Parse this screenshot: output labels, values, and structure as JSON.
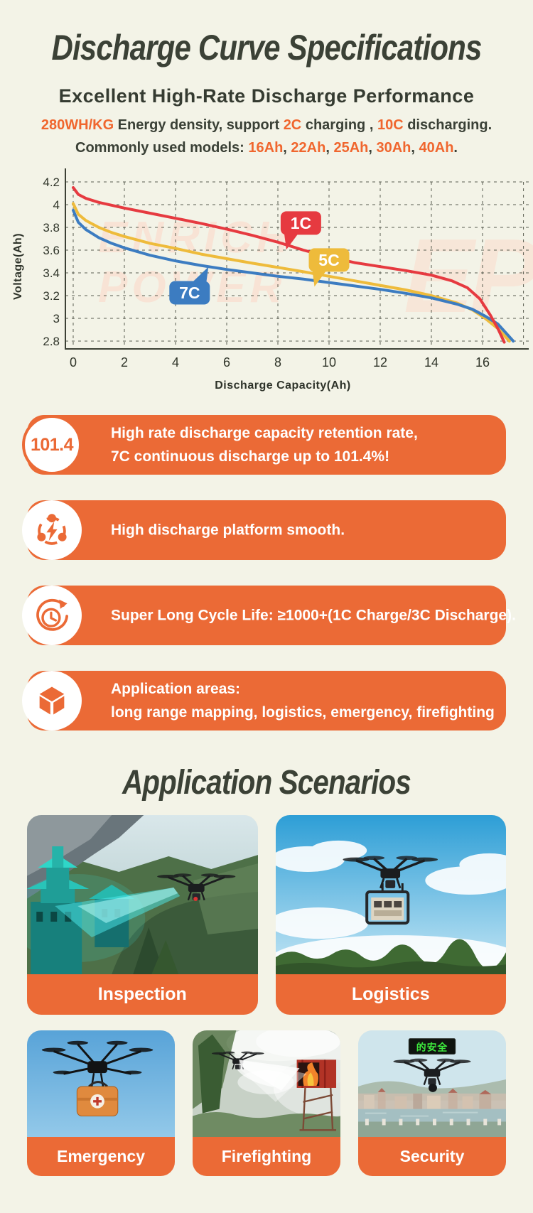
{
  "page": {
    "background": "#f3f3e7",
    "accent_orange": "#eb6a36",
    "highlight_orange": "#f0662e",
    "title_color": "#3b4136"
  },
  "header": {
    "title": "Discharge Curve Specifications",
    "subtitle": "Excellent High-Rate Discharge Performance",
    "line1": [
      [
        "280WH/KG",
        1
      ],
      [
        " Energy density, support ",
        0
      ],
      [
        "2C",
        1
      ],
      [
        " charging , ",
        0
      ],
      [
        "10C",
        1
      ],
      [
        " discharging.",
        0
      ]
    ],
    "line2": [
      [
        "Commonly used models: ",
        0
      ],
      [
        "16Ah",
        1
      ],
      [
        ", ",
        0
      ],
      [
        "22Ah",
        1
      ],
      [
        ", ",
        0
      ],
      [
        "25Ah",
        1
      ],
      [
        ", ",
        0
      ],
      [
        "30Ah",
        1
      ],
      [
        ", ",
        0
      ],
      [
        "40Ah",
        1
      ],
      [
        ".",
        0
      ]
    ]
  },
  "chart_data": {
    "type": "line",
    "xlabel": "Discharge Capacity(Ah)",
    "ylabel": "Voltage(Ah)",
    "xlim": [
      0,
      17.6
    ],
    "ylim": [
      2.8,
      4.2
    ],
    "xticks": [
      0,
      2,
      4,
      6,
      8,
      10,
      12,
      14,
      16
    ],
    "yticks": [
      4.2,
      4,
      3.8,
      3.6,
      3.4,
      3.2,
      3,
      2.8
    ],
    "grid": "dashed",
    "watermark": [
      "ENRICH",
      "POWER"
    ],
    "watermark_logo": "EP",
    "series": [
      {
        "name": "5C",
        "color": "#eebb3b",
        "points": [
          [
            0,
            4.01
          ],
          [
            0.2,
            3.915
          ],
          [
            0.5,
            3.86
          ],
          [
            1,
            3.8
          ],
          [
            1.5,
            3.755
          ],
          [
            2,
            3.72
          ],
          [
            3,
            3.66
          ],
          [
            4,
            3.615
          ],
          [
            5,
            3.565
          ],
          [
            6,
            3.525
          ],
          [
            7,
            3.485
          ],
          [
            8,
            3.448
          ],
          [
            9,
            3.41
          ],
          [
            10,
            3.37
          ],
          [
            11,
            3.33
          ],
          [
            12,
            3.29
          ],
          [
            13,
            3.25
          ],
          [
            14,
            3.2
          ],
          [
            15,
            3.135
          ],
          [
            15.6,
            3.075
          ],
          [
            16.1,
            3.0
          ],
          [
            16.6,
            2.91
          ],
          [
            17.05,
            2.8
          ]
        ]
      },
      {
        "name": "7C",
        "color": "#3c7cc1",
        "points": [
          [
            0,
            3.95
          ],
          [
            0.2,
            3.845
          ],
          [
            0.5,
            3.78
          ],
          [
            1,
            3.71
          ],
          [
            1.5,
            3.66
          ],
          [
            2,
            3.62
          ],
          [
            3,
            3.555
          ],
          [
            4,
            3.505
          ],
          [
            5,
            3.465
          ],
          [
            6,
            3.43
          ],
          [
            7,
            3.4
          ],
          [
            8,
            3.37
          ],
          [
            9,
            3.345
          ],
          [
            10,
            3.315
          ],
          [
            11,
            3.285
          ],
          [
            12,
            3.255
          ],
          [
            13,
            3.22
          ],
          [
            14,
            3.18
          ],
          [
            15,
            3.125
          ],
          [
            15.6,
            3.08
          ],
          [
            16.1,
            3.02
          ],
          [
            16.6,
            2.95
          ],
          [
            17.2,
            2.8
          ]
        ]
      },
      {
        "name": "1C",
        "color": "#e63a40",
        "points": [
          [
            0,
            4.15
          ],
          [
            0.2,
            4.09
          ],
          [
            0.5,
            4.055
          ],
          [
            1,
            4.02
          ],
          [
            1.5,
            3.995
          ],
          [
            2,
            3.97
          ],
          [
            3,
            3.925
          ],
          [
            4,
            3.88
          ],
          [
            5,
            3.835
          ],
          [
            6,
            3.785
          ],
          [
            7,
            3.73
          ],
          [
            8,
            3.67
          ],
          [
            9,
            3.6
          ],
          [
            10,
            3.54
          ],
          [
            11,
            3.49
          ],
          [
            12,
            3.455
          ],
          [
            13,
            3.42
          ],
          [
            14,
            3.38
          ],
          [
            14.8,
            3.33
          ],
          [
            15.4,
            3.27
          ],
          [
            15.9,
            3.17
          ],
          [
            16.3,
            3.03
          ],
          [
            16.6,
            2.91
          ],
          [
            16.85,
            2.79
          ]
        ]
      }
    ],
    "bubbles": [
      {
        "label": "1C",
        "x": 8.9,
        "v": 3.838,
        "tail": "bl"
      },
      {
        "label": "5C",
        "x": 10.0,
        "v": 3.513,
        "tail": "bl"
      },
      {
        "label": "7C",
        "x": 4.55,
        "v": 3.225,
        "tail": "tr"
      }
    ]
  },
  "features": [
    {
      "badge": "101.4",
      "lines": [
        "High rate discharge capacity retention rate,",
        "7C continuous discharge up to 101.4%!"
      ]
    },
    {
      "icon": "lightning-network-icon",
      "lines": [
        "High discharge platform smooth."
      ]
    },
    {
      "icon": "cycle-clock-icon",
      "lines": [
        "Super Long Cycle Life: ≥1000+(1C Charge/3C Discharge)."
      ]
    },
    {
      "icon": "application-box-icon",
      "lines": [
        "Application areas:",
        "long range mapping, logistics, emergency, firefighting"
      ]
    }
  ],
  "scenarios": {
    "title": "Application Scenarios",
    "cards": [
      {
        "label": "Inspection"
      },
      {
        "label": "Logistics"
      },
      {
        "label": "Emergency"
      },
      {
        "label": "Firefighting"
      },
      {
        "label": "Security",
        "led_sign": "的安全"
      }
    ]
  }
}
